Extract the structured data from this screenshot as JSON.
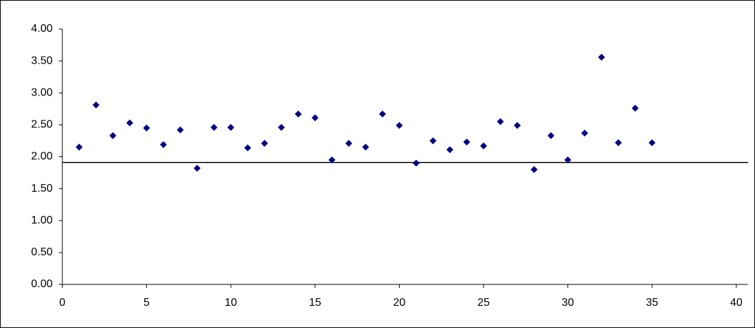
{
  "chart_data": {
    "type": "scatter",
    "x": [
      1,
      2,
      3,
      4,
      5,
      6,
      7,
      8,
      9,
      10,
      11,
      12,
      13,
      14,
      15,
      16,
      17,
      18,
      19,
      20,
      21,
      22,
      23,
      24,
      25,
      26,
      27,
      28,
      29,
      30,
      31,
      32,
      33,
      34,
      35
    ],
    "series": [
      {
        "color": "#000080",
        "values": [
          2.15,
          2.81,
          2.33,
          2.53,
          2.45,
          2.19,
          2.42,
          1.82,
          2.46,
          2.46,
          2.14,
          2.21,
          2.46,
          2.67,
          2.61,
          1.95,
          2.21,
          2.15,
          2.67,
          2.49,
          1.9,
          2.25,
          2.11,
          2.23,
          2.17,
          2.55,
          2.49,
          1.8,
          2.33,
          1.95,
          2.37,
          3.56,
          2.22,
          2.76,
          2.22
        ]
      }
    ],
    "reference_line": 1.91,
    "xlim": [
      0,
      40
    ],
    "xticks": [
      0,
      5,
      10,
      15,
      20,
      25,
      30,
      35,
      40
    ],
    "ylim": [
      0,
      4
    ],
    "yticks": [
      {
        "value": 0,
        "label": "0.00"
      },
      {
        "value": 0.5,
        "label": "0.50"
      },
      {
        "value": 1,
        "label": "1.00"
      },
      {
        "value": 1.5,
        "label": "1.50"
      },
      {
        "value": 2,
        "label": "2.00"
      },
      {
        "value": 2.5,
        "label": "2.50"
      },
      {
        "value": 3,
        "label": "3.00"
      },
      {
        "value": 3.5,
        "label": "3.50"
      },
      {
        "value": 4,
        "label": "4.00"
      }
    ]
  }
}
